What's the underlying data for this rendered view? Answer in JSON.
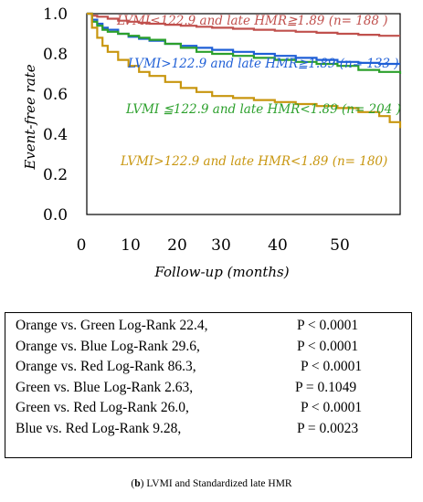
{
  "chart_data": {
    "type": "line",
    "title": "",
    "xlabel": "Follow-up (months)",
    "ylabel": "Event-free rate",
    "xlim": [
      0,
      60
    ],
    "ylim": [
      0.0,
      1.0
    ],
    "x_ticks": [
      "0",
      "10",
      "20",
      "30",
      "40",
      "50"
    ],
    "y_ticks": [
      "1.0",
      "0.8",
      "0.6",
      "0.4",
      "0.2",
      "0.0"
    ],
    "grid": false,
    "series": [
      {
        "name": "LVMI≤122.9 and late HMR≧1.89 (n= 188 )",
        "color": "#c0504d",
        "x": [
          0,
          1,
          2,
          4,
          6,
          8,
          10,
          12,
          15,
          18,
          21,
          24,
          28,
          32,
          36,
          40,
          44,
          48,
          52,
          56,
          60
        ],
        "y": [
          1.0,
          0.99,
          0.985,
          0.975,
          0.965,
          0.96,
          0.955,
          0.95,
          0.945,
          0.94,
          0.935,
          0.93,
          0.925,
          0.92,
          0.915,
          0.91,
          0.905,
          0.9,
          0.895,
          0.89,
          0.89
        ]
      },
      {
        "name": "LVMI>122.9 and late HMR≧1.89 (n= 133 )",
        "color": "#1f5fd6",
        "x": [
          0,
          1,
          2,
          3,
          4,
          6,
          8,
          10,
          12,
          15,
          18,
          21,
          24,
          28,
          32,
          36,
          40,
          44,
          48,
          52,
          56,
          60
        ],
        "y": [
          1.0,
          0.97,
          0.95,
          0.93,
          0.92,
          0.9,
          0.885,
          0.875,
          0.865,
          0.85,
          0.84,
          0.83,
          0.82,
          0.81,
          0.8,
          0.79,
          0.78,
          0.77,
          0.76,
          0.755,
          0.75,
          0.75
        ]
      },
      {
        "name": "LVMI ≦122.9 and late HMR<1.89 (n= 204 )",
        "color": "#2ca02c",
        "x": [
          0,
          1,
          2,
          3,
          4,
          6,
          8,
          10,
          12,
          15,
          18,
          21,
          24,
          28,
          32,
          36,
          40,
          44,
          48,
          52,
          56,
          60
        ],
        "y": [
          1.0,
          0.96,
          0.94,
          0.92,
          0.91,
          0.9,
          0.89,
          0.88,
          0.87,
          0.85,
          0.83,
          0.81,
          0.8,
          0.79,
          0.78,
          0.77,
          0.76,
          0.75,
          0.74,
          0.72,
          0.71,
          0.7
        ]
      },
      {
        "name": "LVMI>122.9 and late HMR<1.89 (n= 180)",
        "color": "#c8960f",
        "x": [
          0,
          1,
          2,
          3,
          4,
          6,
          8,
          10,
          12,
          15,
          18,
          21,
          24,
          28,
          32,
          36,
          40,
          44,
          48,
          52,
          56,
          58,
          60
        ],
        "y": [
          1.0,
          0.93,
          0.88,
          0.84,
          0.81,
          0.77,
          0.74,
          0.71,
          0.69,
          0.66,
          0.63,
          0.61,
          0.59,
          0.58,
          0.57,
          0.56,
          0.55,
          0.54,
          0.53,
          0.51,
          0.49,
          0.46,
          0.43
        ]
      }
    ]
  },
  "stats": [
    {
      "comparison": "Orange vs. Green Log-Rank 22.4,",
      "p": "P < 0.0001"
    },
    {
      "comparison": "Orange vs. Blue Log-Rank 29.6,",
      "p": "P < 0.0001"
    },
    {
      "comparison": "Orange vs. Red Log-Rank 86.3,",
      "p": "P < 0.0001"
    },
    {
      "comparison": "Green vs. Blue Log-Rank 2.63,",
      "p": "P = 0.1049"
    },
    {
      "comparison": "Green vs. Red Log-Rank 26.0,",
      "p": "P < 0.0001"
    },
    {
      "comparison": "Blue vs. Red Log-Rank 9.28,",
      "p": "P = 0.0023"
    }
  ],
  "caption": {
    "prefix": "(",
    "letter": "b",
    "suffix": ") LVMI and Standardized late HMR"
  }
}
